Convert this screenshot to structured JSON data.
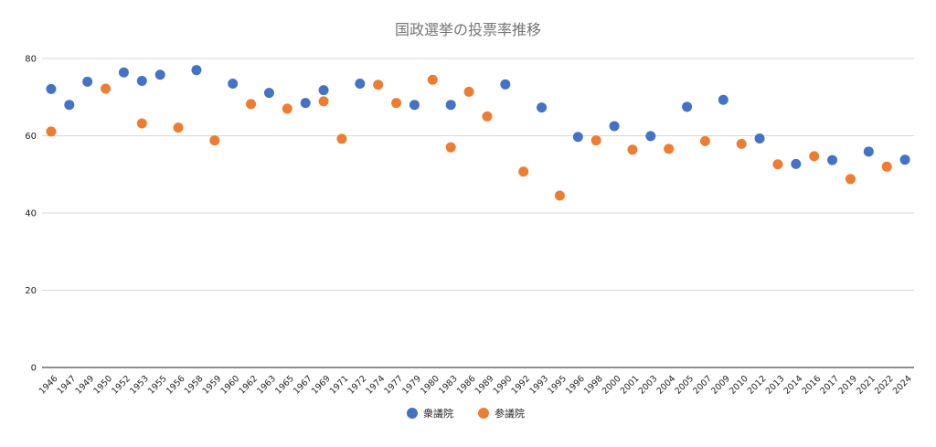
{
  "chart_data": {
    "type": "scatter",
    "title": "国政選挙の投票率推移",
    "xlabel": "",
    "ylabel": "",
    "ylim": [
      0,
      80
    ],
    "yticks": [
      0,
      20,
      40,
      60,
      80
    ],
    "grid": true,
    "legend_position": "bottom",
    "categories": [
      "1946",
      "1947",
      "1949",
      "1950",
      "1952",
      "1953",
      "1955",
      "1956",
      "1958",
      "1959",
      "1960",
      "1962",
      "1963",
      "1965",
      "1967",
      "1969",
      "1971",
      "1972",
      "1974",
      "1977",
      "1979",
      "1980",
      "1983",
      "1986",
      "1989",
      "1990",
      "1992",
      "1993",
      "1995",
      "1996",
      "1998",
      "2000",
      "2001",
      "2003",
      "2004",
      "2005",
      "2007",
      "2009",
      "2010",
      "2012",
      "2013",
      "2014",
      "2016",
      "2017",
      "2019",
      "2021",
      "2022",
      "2024"
    ],
    "series": [
      {
        "name": "衆議院",
        "color": "#4472c4",
        "points": [
          {
            "x": "1946",
            "y": 72.1
          },
          {
            "x": "1947",
            "y": 68.0
          },
          {
            "x": "1949",
            "y": 74.0
          },
          {
            "x": "1952",
            "y": 76.4
          },
          {
            "x": "1953",
            "y": 74.2
          },
          {
            "x": "1955",
            "y": 75.8
          },
          {
            "x": "1958",
            "y": 77.0
          },
          {
            "x": "1960",
            "y": 73.5
          },
          {
            "x": "1963",
            "y": 71.1
          },
          {
            "x": "1967",
            "y": 68.5
          },
          {
            "x": "1969",
            "y": 71.8
          },
          {
            "x": "1972",
            "y": 73.5
          },
          {
            "x": "1979",
            "y": 68.0
          },
          {
            "x": "1983",
            "y": 68.0
          },
          {
            "x": "1990",
            "y": 73.3
          },
          {
            "x": "1993",
            "y": 67.3
          },
          {
            "x": "1996",
            "y": 59.7
          },
          {
            "x": "2000",
            "y": 62.5
          },
          {
            "x": "2003",
            "y": 59.9
          },
          {
            "x": "2005",
            "y": 67.5
          },
          {
            "x": "2009",
            "y": 69.3
          },
          {
            "x": "2012",
            "y": 59.3
          },
          {
            "x": "2014",
            "y": 52.7
          },
          {
            "x": "2017",
            "y": 53.7
          },
          {
            "x": "2021",
            "y": 55.9
          },
          {
            "x": "2024",
            "y": 53.8
          }
        ]
      },
      {
        "name": "参議院",
        "color": "#ed7d31",
        "points": [
          {
            "x": "1946",
            "y": 61.1
          },
          {
            "x": "1950",
            "y": 72.2
          },
          {
            "x": "1953",
            "y": 63.2
          },
          {
            "x": "1956",
            "y": 62.1
          },
          {
            "x": "1959",
            "y": 58.8
          },
          {
            "x": "1962",
            "y": 68.2
          },
          {
            "x": "1965",
            "y": 67.0
          },
          {
            "x": "1969",
            "y": 68.9
          },
          {
            "x": "1971",
            "y": 59.2
          },
          {
            "x": "1974",
            "y": 73.2
          },
          {
            "x": "1977",
            "y": 68.5
          },
          {
            "x": "1980",
            "y": 74.5
          },
          {
            "x": "1983",
            "y": 57.0
          },
          {
            "x": "1986",
            "y": 71.4
          },
          {
            "x": "1989",
            "y": 65.0
          },
          {
            "x": "1992",
            "y": 50.7
          },
          {
            "x": "1995",
            "y": 44.5
          },
          {
            "x": "1998",
            "y": 58.8
          },
          {
            "x": "2001",
            "y": 56.4
          },
          {
            "x": "2004",
            "y": 56.6
          },
          {
            "x": "2007",
            "y": 58.6
          },
          {
            "x": "2010",
            "y": 57.9
          },
          {
            "x": "2013",
            "y": 52.6
          },
          {
            "x": "2016",
            "y": 54.7
          },
          {
            "x": "2019",
            "y": 48.8
          },
          {
            "x": "2022",
            "y": 52.0
          }
        ]
      }
    ]
  }
}
